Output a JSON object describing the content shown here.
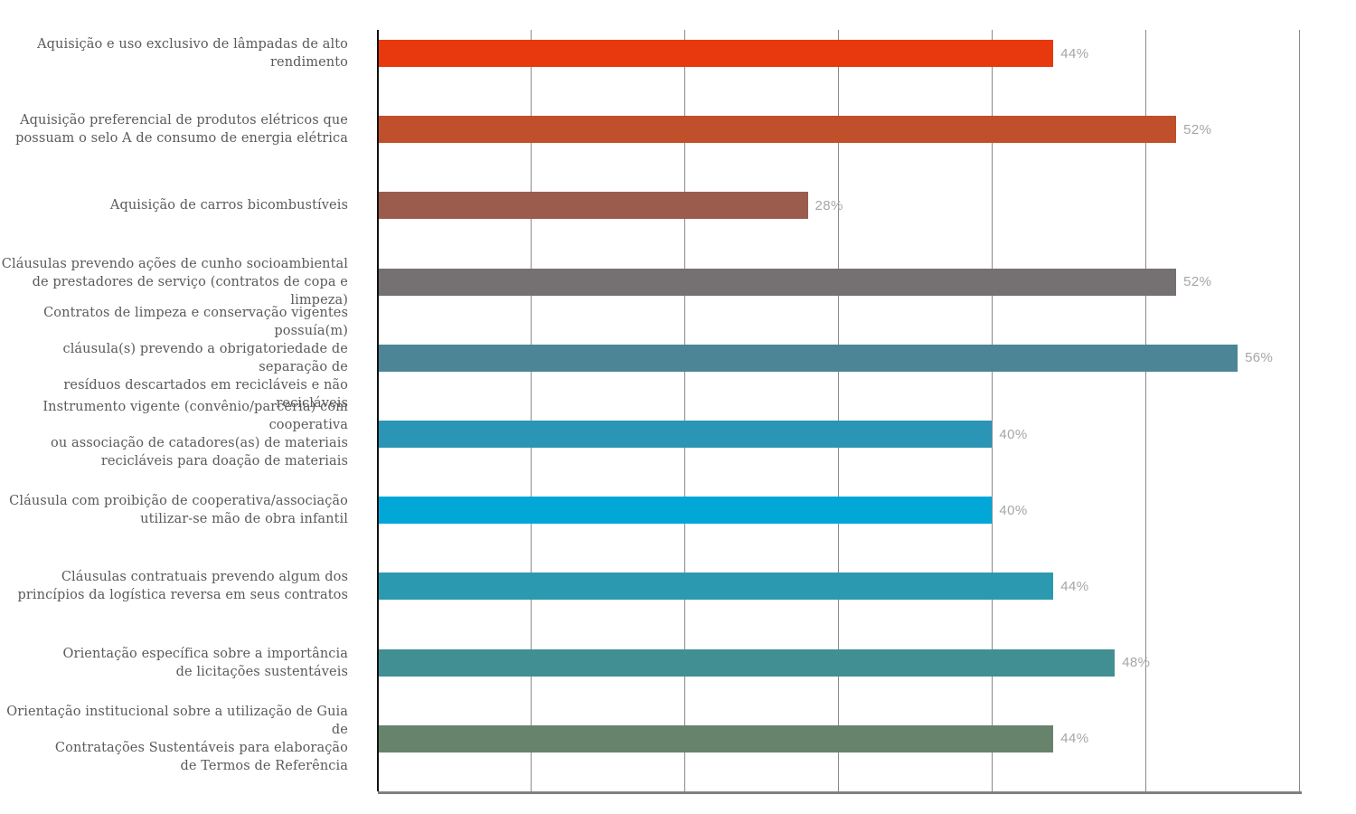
{
  "chart_data": {
    "type": "bar",
    "orientation": "horizontal",
    "title": "",
    "xlabel": "",
    "ylabel": "",
    "xlim": [
      0,
      60
    ],
    "gridline_interval_percent": 10,
    "gridlines_percent": [
      0,
      10,
      20,
      30,
      40,
      50,
      60
    ],
    "grid": "vertical-only",
    "legend": "none",
    "categories": [
      "Aquisição e uso exclusivo de lâmpadas de alto rendimento",
      "Aquisição preferencial de produtos elétricos que possuam o selo A de consumo de energia elétrica",
      "Aquisição de carros bicombustíveis",
      "Cláusulas prevendo ações de cunho socioambiental de prestadores de serviço (contratos de copa e limpeza)",
      "Contratos de limpeza e conservação vigentes possuía(m) cláusula(s) prevendo a obrigatoriedade de separação de resíduos descartados em recicláveis e não recicláveis",
      "Instrumento vigente (convênio/parceria) com cooperativa ou associação de catadores(as) de materiais recicláveis para doação de materiais",
      "Cláusula com proibição de cooperativa/associação utilizar-se mão de obra infantil",
      "Cláusulas contratuais prevendo algum dos princípios da logística reversa em seus contratos",
      "Orientação específica sobre a importância de licitações sustentáveis",
      "Orientação institucional sobre a utilização de Guia de Contratações Sustentáveis para elaboração de Termos de Referência"
    ],
    "category_lines": [
      [
        "Aquisição e uso exclusivo de lâmpadas de alto rendimento"
      ],
      [
        "Aquisição preferencial de produtos elétricos que",
        "possuam o selo A de consumo de energia elétrica"
      ],
      [
        "Aquisição de carros bicombustíveis"
      ],
      [
        "Cláusulas prevendo ações de cunho socioambiental",
        "de prestadores de serviço (contratos de copa e limpeza)"
      ],
      [
        "Contratos de limpeza e conservação vigentes possuía(m)",
        "cláusula(s) prevendo a obrigatoriedade de separação de",
        "resíduos descartados em recicláveis e não recicláveis"
      ],
      [
        "Instrumento vigente (convênio/parceria) com cooperativa",
        "ou associação de catadores(as) de materiais",
        "recicláveis para doação de materiais"
      ],
      [
        "Cláusula com proibição de cooperativa/associação",
        "utilizar-se mão de obra infantil"
      ],
      [
        "Cláusulas contratuais prevendo algum dos",
        "princípios da logística reversa em seus contratos"
      ],
      [
        "Orientação específica sobre a importância",
        "de licitações sustentáveis"
      ],
      [
        "Orientação institucional sobre a utilização de Guia de",
        "Contratações Sustentáveis para elaboração",
        "de Termos de Referência"
      ]
    ],
    "values": [
      44,
      52,
      28,
      52,
      56,
      40,
      40,
      44,
      48,
      44
    ],
    "value_labels": [
      "44%",
      "52%",
      "28%",
      "52%",
      "56%",
      "40%",
      "40%",
      "44%",
      "48%",
      "44%"
    ],
    "bar_colors": [
      "#e8380d",
      "#c04f2b",
      "#9c5c4d",
      "#757071",
      "#4c8595",
      "#2a95b5",
      "#00a7d7",
      "#2b99b0",
      "#418f92",
      "#67836c"
    ],
    "colors": {
      "background": "#ffffff",
      "gridline": "#8a8a8a",
      "y_axis_line": "#111111",
      "x_axis_line": "#7f7f7f",
      "category_label_text": "#5a5a5a",
      "value_label_text": "#a6a6a6"
    }
  }
}
